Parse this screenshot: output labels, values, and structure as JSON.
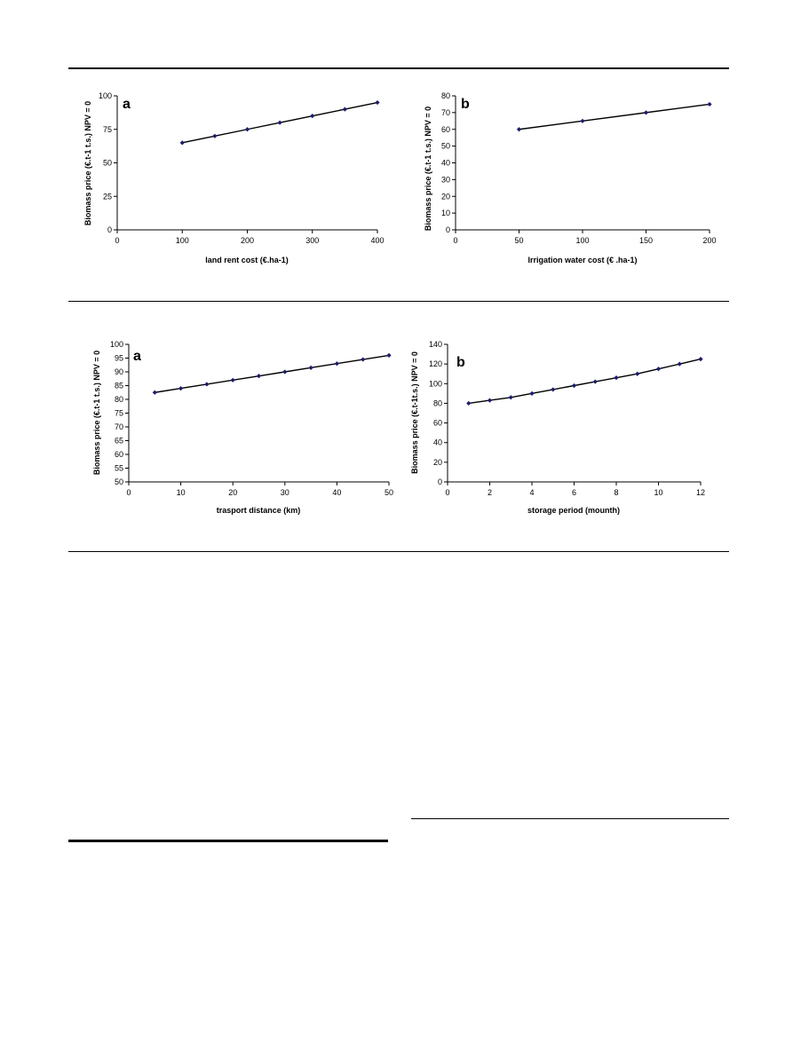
{
  "colors": {
    "series": "#000000",
    "marker": "#1c1c6e",
    "axis": "#000000"
  },
  "chart_data": [
    {
      "type": "line",
      "panel_label": "a",
      "xlabel": "land rent cost (€.ha-1)",
      "ylabel": "Biomass price (€.t-1 t.s.) NPV = 0",
      "xlim": [
        0,
        400
      ],
      "ylim": [
        0,
        100
      ],
      "xticks": [
        0,
        100,
        200,
        300,
        400
      ],
      "yticks": [
        0,
        25,
        50,
        75,
        100
      ],
      "x": [
        100,
        150,
        200,
        250,
        300,
        350,
        400
      ],
      "y": [
        65,
        70,
        75,
        80,
        85,
        90,
        95
      ]
    },
    {
      "type": "line",
      "panel_label": "b",
      "xlabel": "Irrigation water cost (€ .ha-1)",
      "ylabel": "Biomass price (€.t-1 t.s.) NPV = 0",
      "xlim": [
        0,
        200
      ],
      "ylim": [
        0,
        80
      ],
      "xticks": [
        0,
        50,
        100,
        150,
        200
      ],
      "yticks": [
        0,
        10,
        20,
        30,
        40,
        50,
        60,
        70,
        80
      ],
      "x": [
        50,
        100,
        150,
        200
      ],
      "y": [
        60,
        65,
        70,
        75
      ]
    },
    {
      "type": "line",
      "panel_label": "a",
      "xlabel": "trasport distance (km)",
      "ylabel": "Biomass price (€.t-1 t.s.) NPV = 0",
      "xlim": [
        0,
        50
      ],
      "ylim": [
        50,
        100
      ],
      "xticks": [
        0,
        10,
        20,
        30,
        40,
        50
      ],
      "yticks": [
        50,
        55,
        60,
        65,
        70,
        75,
        80,
        85,
        90,
        95,
        100
      ],
      "x": [
        5,
        10,
        15,
        20,
        25,
        30,
        35,
        40,
        45,
        50
      ],
      "y": [
        82.5,
        84,
        85.5,
        87,
        88.5,
        90,
        91.5,
        93,
        94.5,
        96
      ]
    },
    {
      "type": "line",
      "panel_label": "b",
      "xlabel": "storage period (mounth)",
      "ylabel": "Biomass price (€.t-1t.s.) NPV = 0",
      "xlim": [
        0,
        12
      ],
      "ylim": [
        0,
        140
      ],
      "xticks": [
        0,
        2,
        4,
        6,
        8,
        10,
        12
      ],
      "yticks": [
        0,
        20,
        40,
        60,
        80,
        100,
        120,
        140
      ],
      "x": [
        1,
        2,
        3,
        4,
        5,
        6,
        7,
        8,
        9,
        10,
        11,
        12
      ],
      "y": [
        80,
        83,
        86,
        90,
        94,
        98,
        102,
        106,
        110,
        115,
        120,
        125
      ]
    }
  ]
}
